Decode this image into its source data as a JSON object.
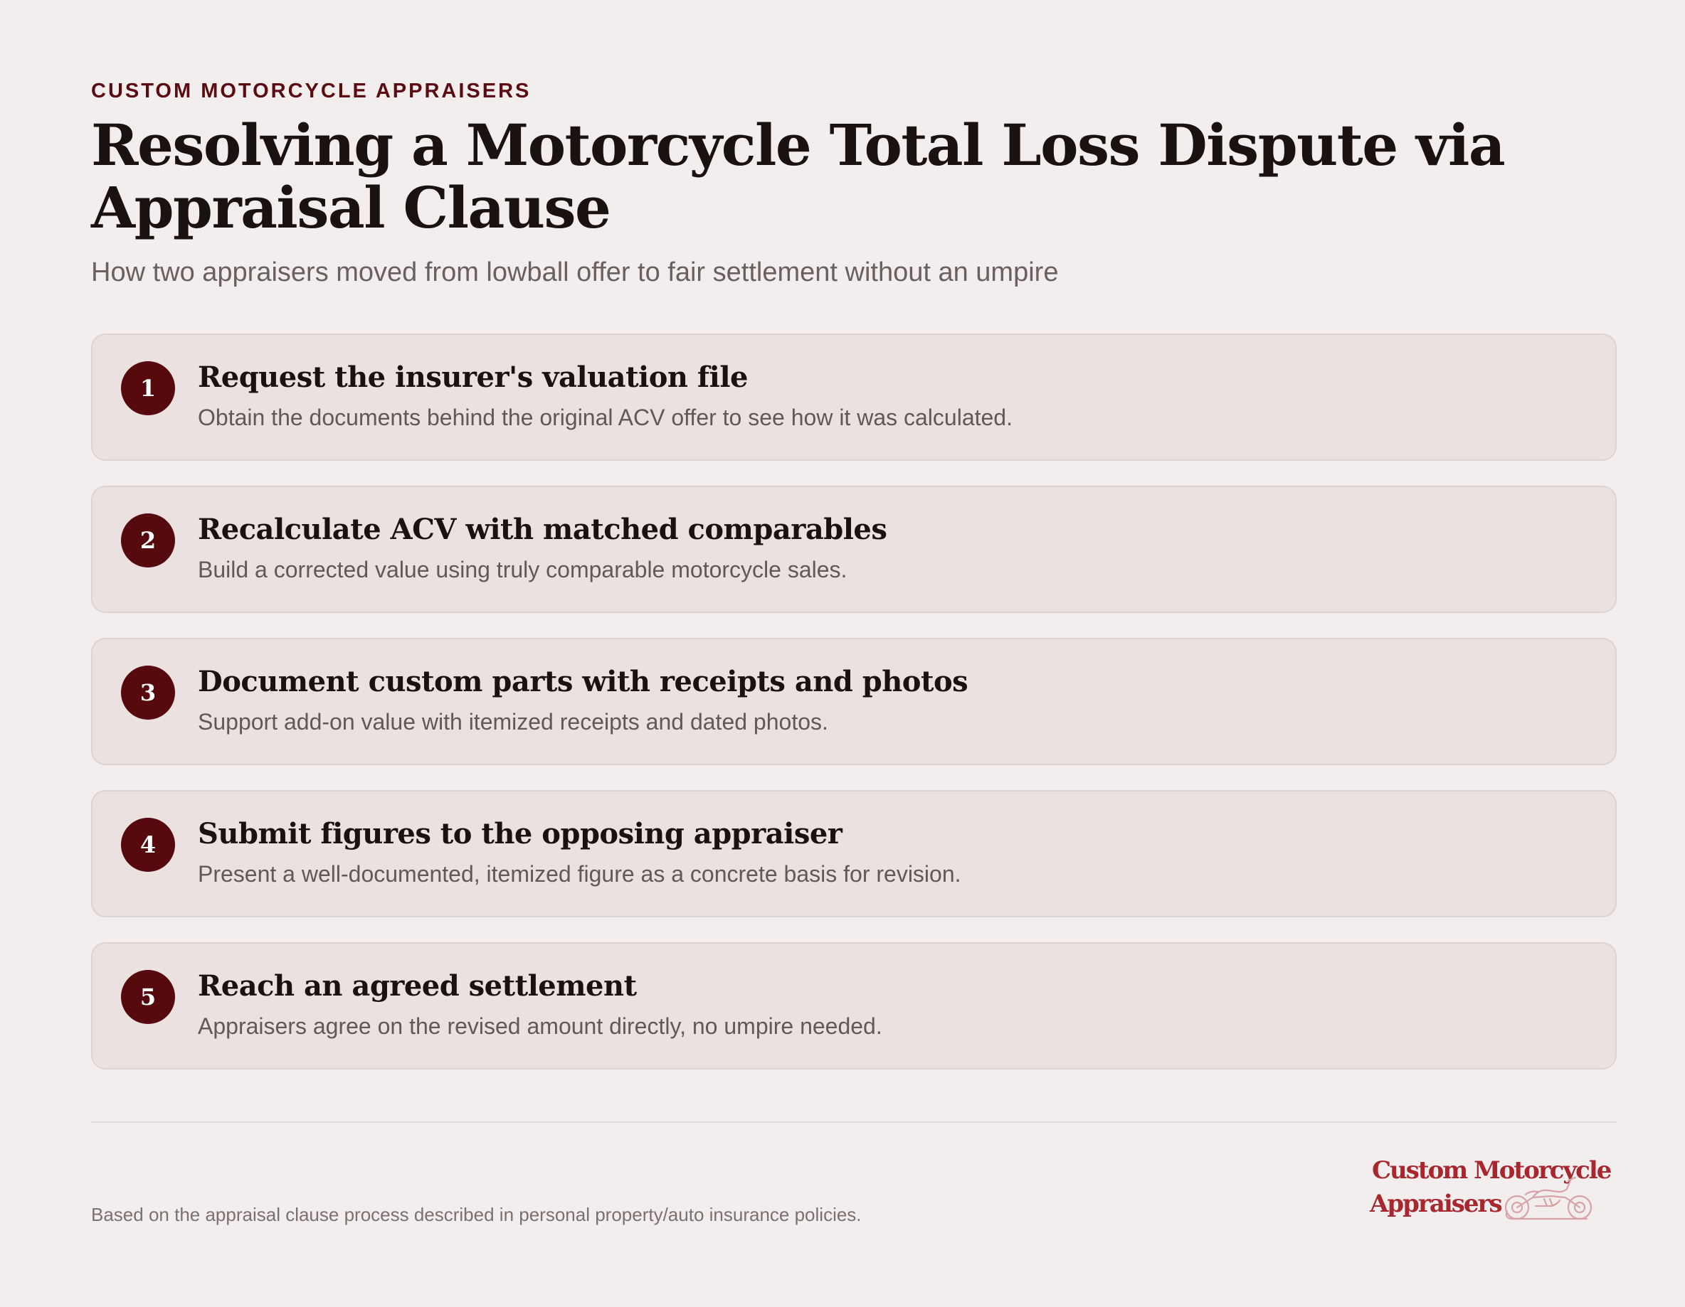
{
  "header": {
    "eyebrow": "CUSTOM MOTORCYCLE APPRAISERS",
    "title": "Resolving a Motorcycle Total Loss Dispute via Appraisal Clause",
    "subtitle": "How two appraisers moved from lowball offer to fair settlement without an umpire"
  },
  "steps": [
    {
      "number": "1",
      "title": "Request the insurer's valuation file",
      "description": "Obtain the documents behind the original ACV offer to see how it was calculated."
    },
    {
      "number": "2",
      "title": "Recalculate ACV with matched comparables",
      "description": "Build a corrected value using truly comparable motorcycle sales."
    },
    {
      "number": "3",
      "title": "Document custom parts with receipts and photos",
      "description": "Support add-on value with itemized receipts and dated photos."
    },
    {
      "number": "4",
      "title": "Submit figures to the opposing appraiser",
      "description": "Present a well-documented, itemized figure as a concrete basis for revision."
    },
    {
      "number": "5",
      "title": "Reach an agreed settlement",
      "description": "Appraisers agree on the revised amount directly, no umpire needed."
    }
  ],
  "footer": {
    "note": "Based on the appraisal clause process described in personal property/auto insurance policies.",
    "logo": {
      "line1": "Custom Motorcycle",
      "line2": "Appraisers",
      "icon": "motorcycle-icon"
    }
  },
  "colors": {
    "background": "#f3eeee",
    "card": "#ebe1e1",
    "accent": "#560a0e",
    "logo": "#a8262e"
  }
}
